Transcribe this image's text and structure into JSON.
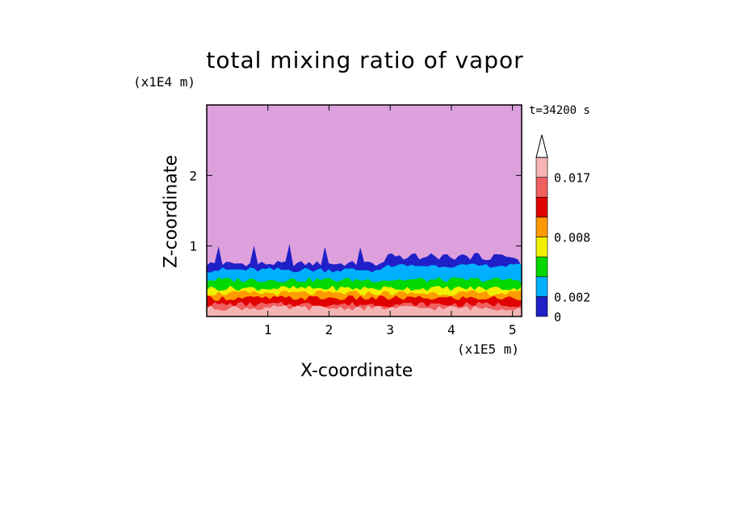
{
  "chart_data": {
    "type": "heatmap",
    "title": "total mixing ratio of vapor",
    "xlabel": "X-coordinate",
    "ylabel": "Z-coordinate",
    "x_scale_label": "(x1E5 m)",
    "y_scale_label": "(x1E4 m)",
    "time_label": "t=34200 s",
    "xlim": [
      0,
      5.15
    ],
    "ylim": [
      0,
      3.0
    ],
    "x_ticks": [
      "1",
      "2",
      "3",
      "4",
      "5"
    ],
    "x_tick_values": [
      1,
      2,
      3,
      4,
      5
    ],
    "y_ticks": [
      "1",
      "2"
    ],
    "y_tick_values": [
      1,
      2
    ],
    "colorbar": {
      "labels": [
        "0.017",
        "0.008",
        "0.002",
        "0"
      ],
      "label_levels": [
        7,
        4,
        1,
        0
      ],
      "colors": [
        "#2020c8",
        "#00b0ff",
        "#00d800",
        "#f0f000",
        "#ff9b00",
        "#e00000",
        "#f06060",
        "#f4b4b4"
      ],
      "extend_color": "#ffffff"
    },
    "background_color": "#dda0dd",
    "layers": [
      {
        "color": "#f4b4b4",
        "top_z": 0.12
      },
      {
        "color": "#f06060",
        "top_z": 0.17
      },
      {
        "color": "#e00000",
        "top_z": 0.26
      },
      {
        "color": "#ff9b00",
        "top_z": 0.33
      },
      {
        "color": "#f0f000",
        "top_z": 0.4
      },
      {
        "color": "#00d800",
        "top_z": 0.52
      },
      {
        "color": "#00b0ff",
        "top_z": 0.66
      },
      {
        "color": "#2020c8",
        "top_z": 0.75
      }
    ]
  }
}
